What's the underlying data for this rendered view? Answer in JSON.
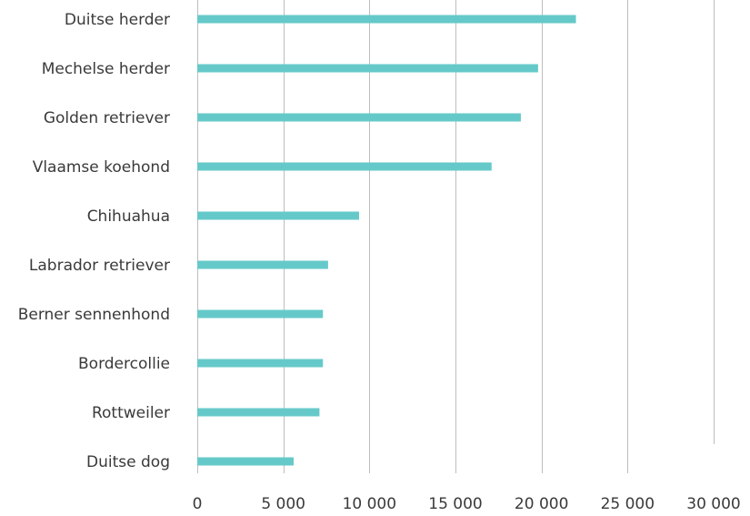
{
  "chart_data": {
    "type": "bar",
    "orientation": "horizontal",
    "categories": [
      "Duitse herder",
      "Mechelse herder",
      "Golden retriever",
      "Vlaamse koehond",
      "Chihuahua",
      "Labrador retriever",
      "Berner sennenhond",
      "Bordercollie",
      "Rottweiler",
      "Duitse dog"
    ],
    "series": [
      {
        "values": [
          22000,
          19800,
          18800,
          17100,
          9400,
          7600,
          7300,
          7300,
          7100,
          5600
        ]
      }
    ],
    "xlim": [
      0,
      30000
    ],
    "x_ticks": [
      0,
      5000,
      10000,
      15000,
      20000,
      25000,
      30000
    ],
    "x_tick_labels": [
      "0",
      "5 000",
      "10 000",
      "15 000",
      "20 000",
      "25 000",
      "30 000"
    ],
    "title": "",
    "xlabel": "",
    "ylabel": "",
    "grid": "vertical",
    "legend": "none",
    "colors": {
      "bar": "#66c9c9",
      "grid": "#bdbdbd",
      "text": "#3a3a3a"
    }
  }
}
